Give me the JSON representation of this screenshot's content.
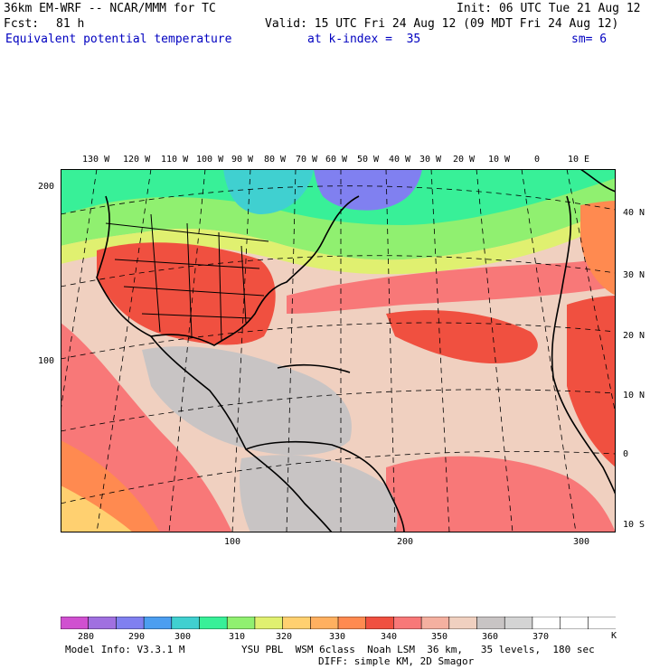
{
  "header": {
    "model": "36km EM-WRF -- NCAR/MMM for TC",
    "init": "Init: 06 UTC Tue 21 Aug 12",
    "fcst_label": "Fcst:",
    "fcst_hours": "81 h",
    "valid": "Valid: 15 UTC Fri 24 Aug 12 (09 MDT Fri 24 Aug 12)",
    "field": "Equivalent potential temperature",
    "level": "at k-index =  35",
    "smoothing": "sm= 6"
  },
  "map": {
    "lon_labels": [
      "130 W",
      "120 W",
      "110 W",
      "100 W",
      "90 W",
      "80 W",
      "70 W",
      "60 W",
      "50 W",
      "40 W",
      "30 W",
      "20 W",
      "10 W",
      "0",
      "10 E"
    ],
    "lat_labels": [
      "40 N",
      "30 N",
      "20 N",
      "10 N",
      "0",
      "10 S"
    ],
    "grid_left_labels": [
      "200",
      "100"
    ],
    "grid_bottom_labels": [
      "100",
      "200",
      "300"
    ]
  },
  "colorbar": {
    "tick_labels": [
      "280",
      "290",
      "300",
      "310",
      "320",
      "330",
      "340",
      "350",
      "360",
      "370"
    ],
    "units": "K",
    "colors": [
      "#d050d0",
      "#a070e0",
      "#8080f0",
      "#4c9ef0",
      "#40d0d0",
      "#38f098",
      "#90f070",
      "#e0f070",
      "#ffd070",
      "#ffb060",
      "#ff8a50",
      "#f05040",
      "#f87878",
      "#f4b0a0",
      "#f0d0c0",
      "#c8c4c4",
      "#d4d4d4",
      "#ffffff",
      "#ffffff",
      "#ffffff"
    ]
  },
  "footer": {
    "model_info": "Model Info: V3.3.1 M",
    "physics": "YSU PBL  WSM 6class  Noah LSM  36 km,   35 levels,  180 sec",
    "diffusion": "DIFF: simple KM, 2D Smagor"
  }
}
